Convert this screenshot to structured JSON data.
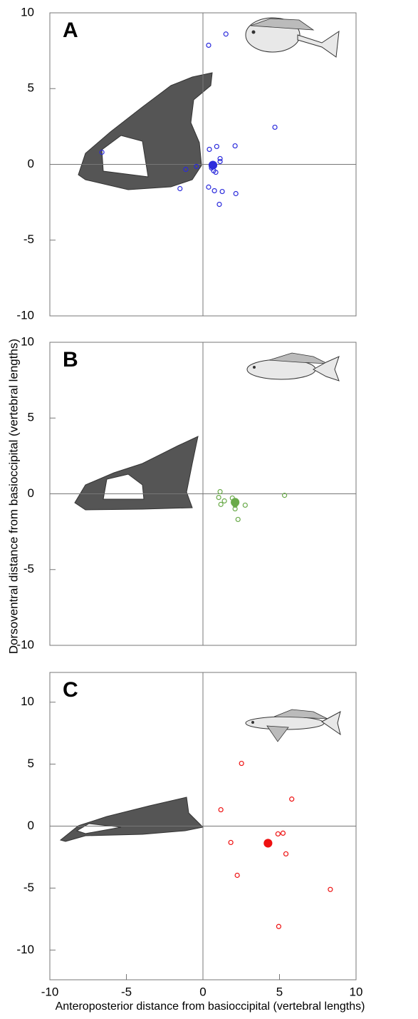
{
  "chart_data": [
    {
      "type": "scatter",
      "label": "A",
      "xlim": [
        -10,
        10
      ],
      "ylim": [
        -10,
        10
      ],
      "yticks": [
        -10,
        -5,
        0,
        5,
        10
      ],
      "series": [
        {
          "color": "#2b2bdc",
          "marker": "open",
          "x": [
            1.5,
            0.37,
            4.7,
            2.1,
            0.9,
            0.42,
            1.12,
            1.12,
            -6.6,
            -0.42,
            -1.12,
            0.56,
            0.7,
            0.84,
            -1.5,
            0.37,
            0.75,
            1.26,
            2.15,
            1.07
          ],
          "values": [
            8.6,
            7.86,
            2.45,
            1.22,
            1.18,
            0.99,
            0.38,
            0.19,
            0.8,
            -0.14,
            -0.33,
            -0.24,
            -0.42,
            -0.52,
            -1.6,
            -1.5,
            -1.74,
            -1.79,
            -1.93,
            -2.64
          ]
        },
        {
          "color": "#2b2bdc",
          "marker": "filled",
          "x": [
            0.65
          ],
          "values": [
            -0.05
          ]
        }
      ]
    },
    {
      "type": "scatter",
      "label": "B",
      "xlim": [
        -10,
        10
      ],
      "ylim": [
        -10,
        10
      ],
      "yticks": [
        -10,
        -5,
        0,
        5,
        10
      ],
      "ylabel": "Dorsoventral distance  from basioccipital (vertebral lengths)",
      "series": [
        {
          "color": "#6aaa4a",
          "marker": "open",
          "x": [
            1.12,
            1.03,
            1.4,
            1.17,
            1.92,
            2.1,
            2.1,
            2.76,
            2.29,
            5.33
          ],
          "values": [
            0.14,
            -0.24,
            -0.47,
            -0.7,
            -0.28,
            -0.75,
            -0.99,
            -0.75,
            -1.69,
            -0.1
          ]
        },
        {
          "color": "#6aaa4a",
          "marker": "filled",
          "x": [
            2.1
          ],
          "values": [
            -0.56
          ]
        }
      ]
    },
    {
      "type": "scatter",
      "label": "C",
      "xlim": [
        -10,
        10
      ],
      "ylim": [
        -12.4,
        12.4
      ],
      "yticks": [
        -10,
        -5,
        0,
        5,
        10
      ],
      "xticks": [
        -10,
        -5,
        0,
        5,
        10
      ],
      "xlabel": "Anteroposterior distance from basioccipital (vertebral lengths)",
      "series": [
        {
          "color": "#ee1111",
          "marker": "open",
          "x": [
            2.52,
            5.8,
            1.17,
            1.82,
            4.9,
            5.23,
            5.42,
            2.24,
            8.32,
            4.95
          ],
          "values": [
            5.06,
            2.18,
            1.32,
            -1.32,
            -0.63,
            -0.57,
            -2.24,
            -3.97,
            -5.11,
            -8.1
          ]
        },
        {
          "color": "#ee1111",
          "marker": "filled",
          "x": [
            4.25
          ],
          "values": [
            -1.38
          ]
        }
      ]
    }
  ]
}
